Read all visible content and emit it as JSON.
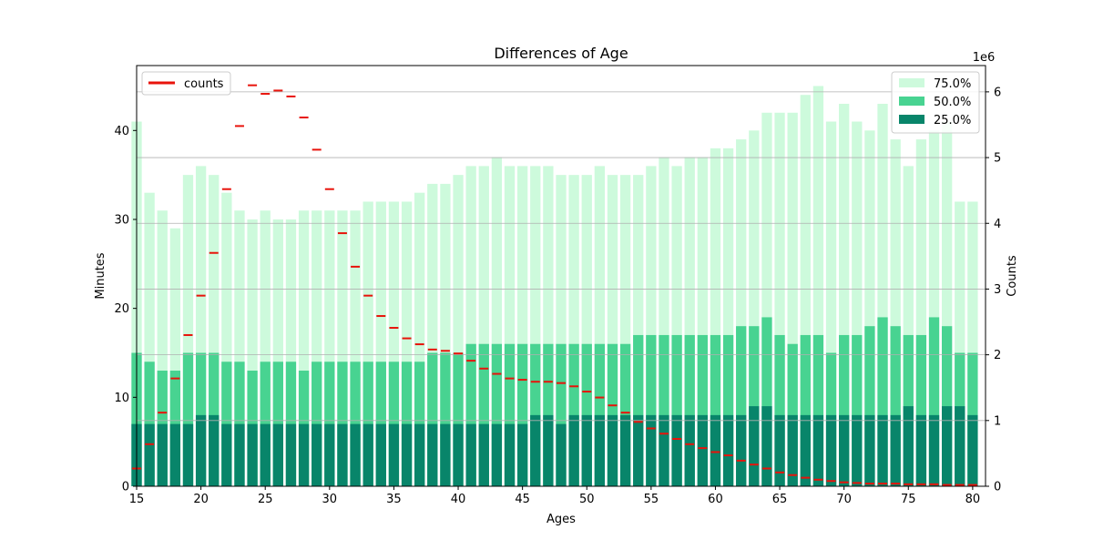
{
  "chart_data": {
    "type": "bar",
    "title": "Differences of Age",
    "xlabel": "Ages",
    "ylabel": "Minutes",
    "y2label": "Counts",
    "y2_offset_text": "1e6",
    "xlim": [
      15,
      81
    ],
    "ylim": [
      0,
      47.3
    ],
    "y2lim": [
      0,
      6.4
    ],
    "xticks": [
      15,
      20,
      25,
      30,
      35,
      40,
      45,
      50,
      55,
      60,
      65,
      70,
      75,
      80
    ],
    "yticks": [
      0,
      10,
      20,
      30,
      40
    ],
    "y2ticks": [
      0,
      1,
      2,
      3,
      4,
      5,
      6
    ],
    "grid": "horizontal, right axis",
    "x": [
      15,
      16,
      17,
      18,
      19,
      20,
      21,
      22,
      23,
      24,
      25,
      26,
      27,
      28,
      29,
      30,
      31,
      32,
      33,
      34,
      35,
      36,
      37,
      38,
      39,
      40,
      41,
      42,
      43,
      44,
      45,
      46,
      47,
      48,
      49,
      50,
      51,
      52,
      53,
      54,
      55,
      56,
      57,
      58,
      59,
      60,
      61,
      62,
      63,
      64,
      65,
      66,
      67,
      68,
      69,
      70,
      71,
      72,
      73,
      74,
      75,
      76,
      77,
      78,
      79,
      80
    ],
    "series": [
      {
        "name": "75.0%",
        "color": "#cdfadc",
        "values": [
          41,
          33,
          31,
          29,
          35,
          36,
          35,
          33,
          31,
          30,
          31,
          30,
          30,
          31,
          31,
          31,
          31,
          31,
          32,
          32,
          32,
          32,
          33,
          34,
          34,
          35,
          36,
          36,
          37,
          36,
          36,
          36,
          36,
          35,
          35,
          35,
          36,
          35,
          35,
          35,
          36,
          37,
          36,
          37,
          37,
          38,
          38,
          39,
          40,
          42,
          42,
          42,
          44,
          45,
          41,
          43,
          41,
          40,
          43,
          39,
          36,
          39,
          40,
          41,
          32,
          32
        ]
      },
      {
        "name": "50.0%",
        "color": "#48d391",
        "values": [
          15,
          14,
          13,
          13,
          15,
          15,
          15,
          14,
          14,
          13,
          14,
          14,
          14,
          13,
          14,
          14,
          14,
          14,
          14,
          14,
          14,
          14,
          14,
          15,
          15,
          15,
          16,
          16,
          16,
          16,
          16,
          16,
          16,
          16,
          16,
          16,
          16,
          16,
          16,
          17,
          17,
          17,
          17,
          17,
          17,
          17,
          17,
          18,
          18,
          19,
          17,
          16,
          17,
          17,
          15,
          17,
          17,
          18,
          19,
          18,
          17,
          17,
          19,
          18,
          15,
          15
        ]
      },
      {
        "name": "25.0%",
        "color": "#08856a",
        "values": [
          7,
          7,
          7,
          7,
          7,
          8,
          8,
          7,
          7,
          7,
          7,
          7,
          7,
          7,
          7,
          7,
          7,
          7,
          7,
          7,
          7,
          7,
          7,
          7,
          7,
          7,
          7,
          7,
          7,
          7,
          7,
          8,
          8,
          7,
          8,
          8,
          8,
          8,
          8,
          8,
          8,
          8,
          8,
          8,
          8,
          8,
          8,
          8,
          9,
          9,
          8,
          8,
          8,
          8,
          8,
          8,
          8,
          8,
          8,
          8,
          9,
          8,
          8,
          9,
          9,
          8
        ]
      },
      {
        "name": "counts",
        "axis": "right",
        "color": "#e8130b",
        "scale": "1e6",
        "values": [
          0.27,
          0.64,
          1.12,
          1.64,
          2.3,
          2.9,
          3.55,
          4.52,
          5.48,
          6.1,
          5.97,
          6.02,
          5.93,
          5.61,
          5.12,
          4.52,
          3.85,
          3.34,
          2.9,
          2.59,
          2.41,
          2.25,
          2.16,
          2.08,
          2.06,
          2.02,
          1.91,
          1.79,
          1.71,
          1.64,
          1.62,
          1.59,
          1.59,
          1.57,
          1.52,
          1.44,
          1.35,
          1.23,
          1.12,
          0.98,
          0.88,
          0.8,
          0.72,
          0.64,
          0.58,
          0.52,
          0.47,
          0.39,
          0.33,
          0.27,
          0.21,
          0.17,
          0.13,
          0.1,
          0.08,
          0.06,
          0.05,
          0.04,
          0.04,
          0.04,
          0.03,
          0.03,
          0.03,
          0.02,
          0.02,
          0.02
        ]
      }
    ],
    "legend_left": {
      "placement": "upper-left",
      "entries": [
        "counts"
      ]
    },
    "legend_right": {
      "placement": "upper-right",
      "entries": [
        "75.0%",
        "50.0%",
        "25.0%"
      ]
    }
  }
}
